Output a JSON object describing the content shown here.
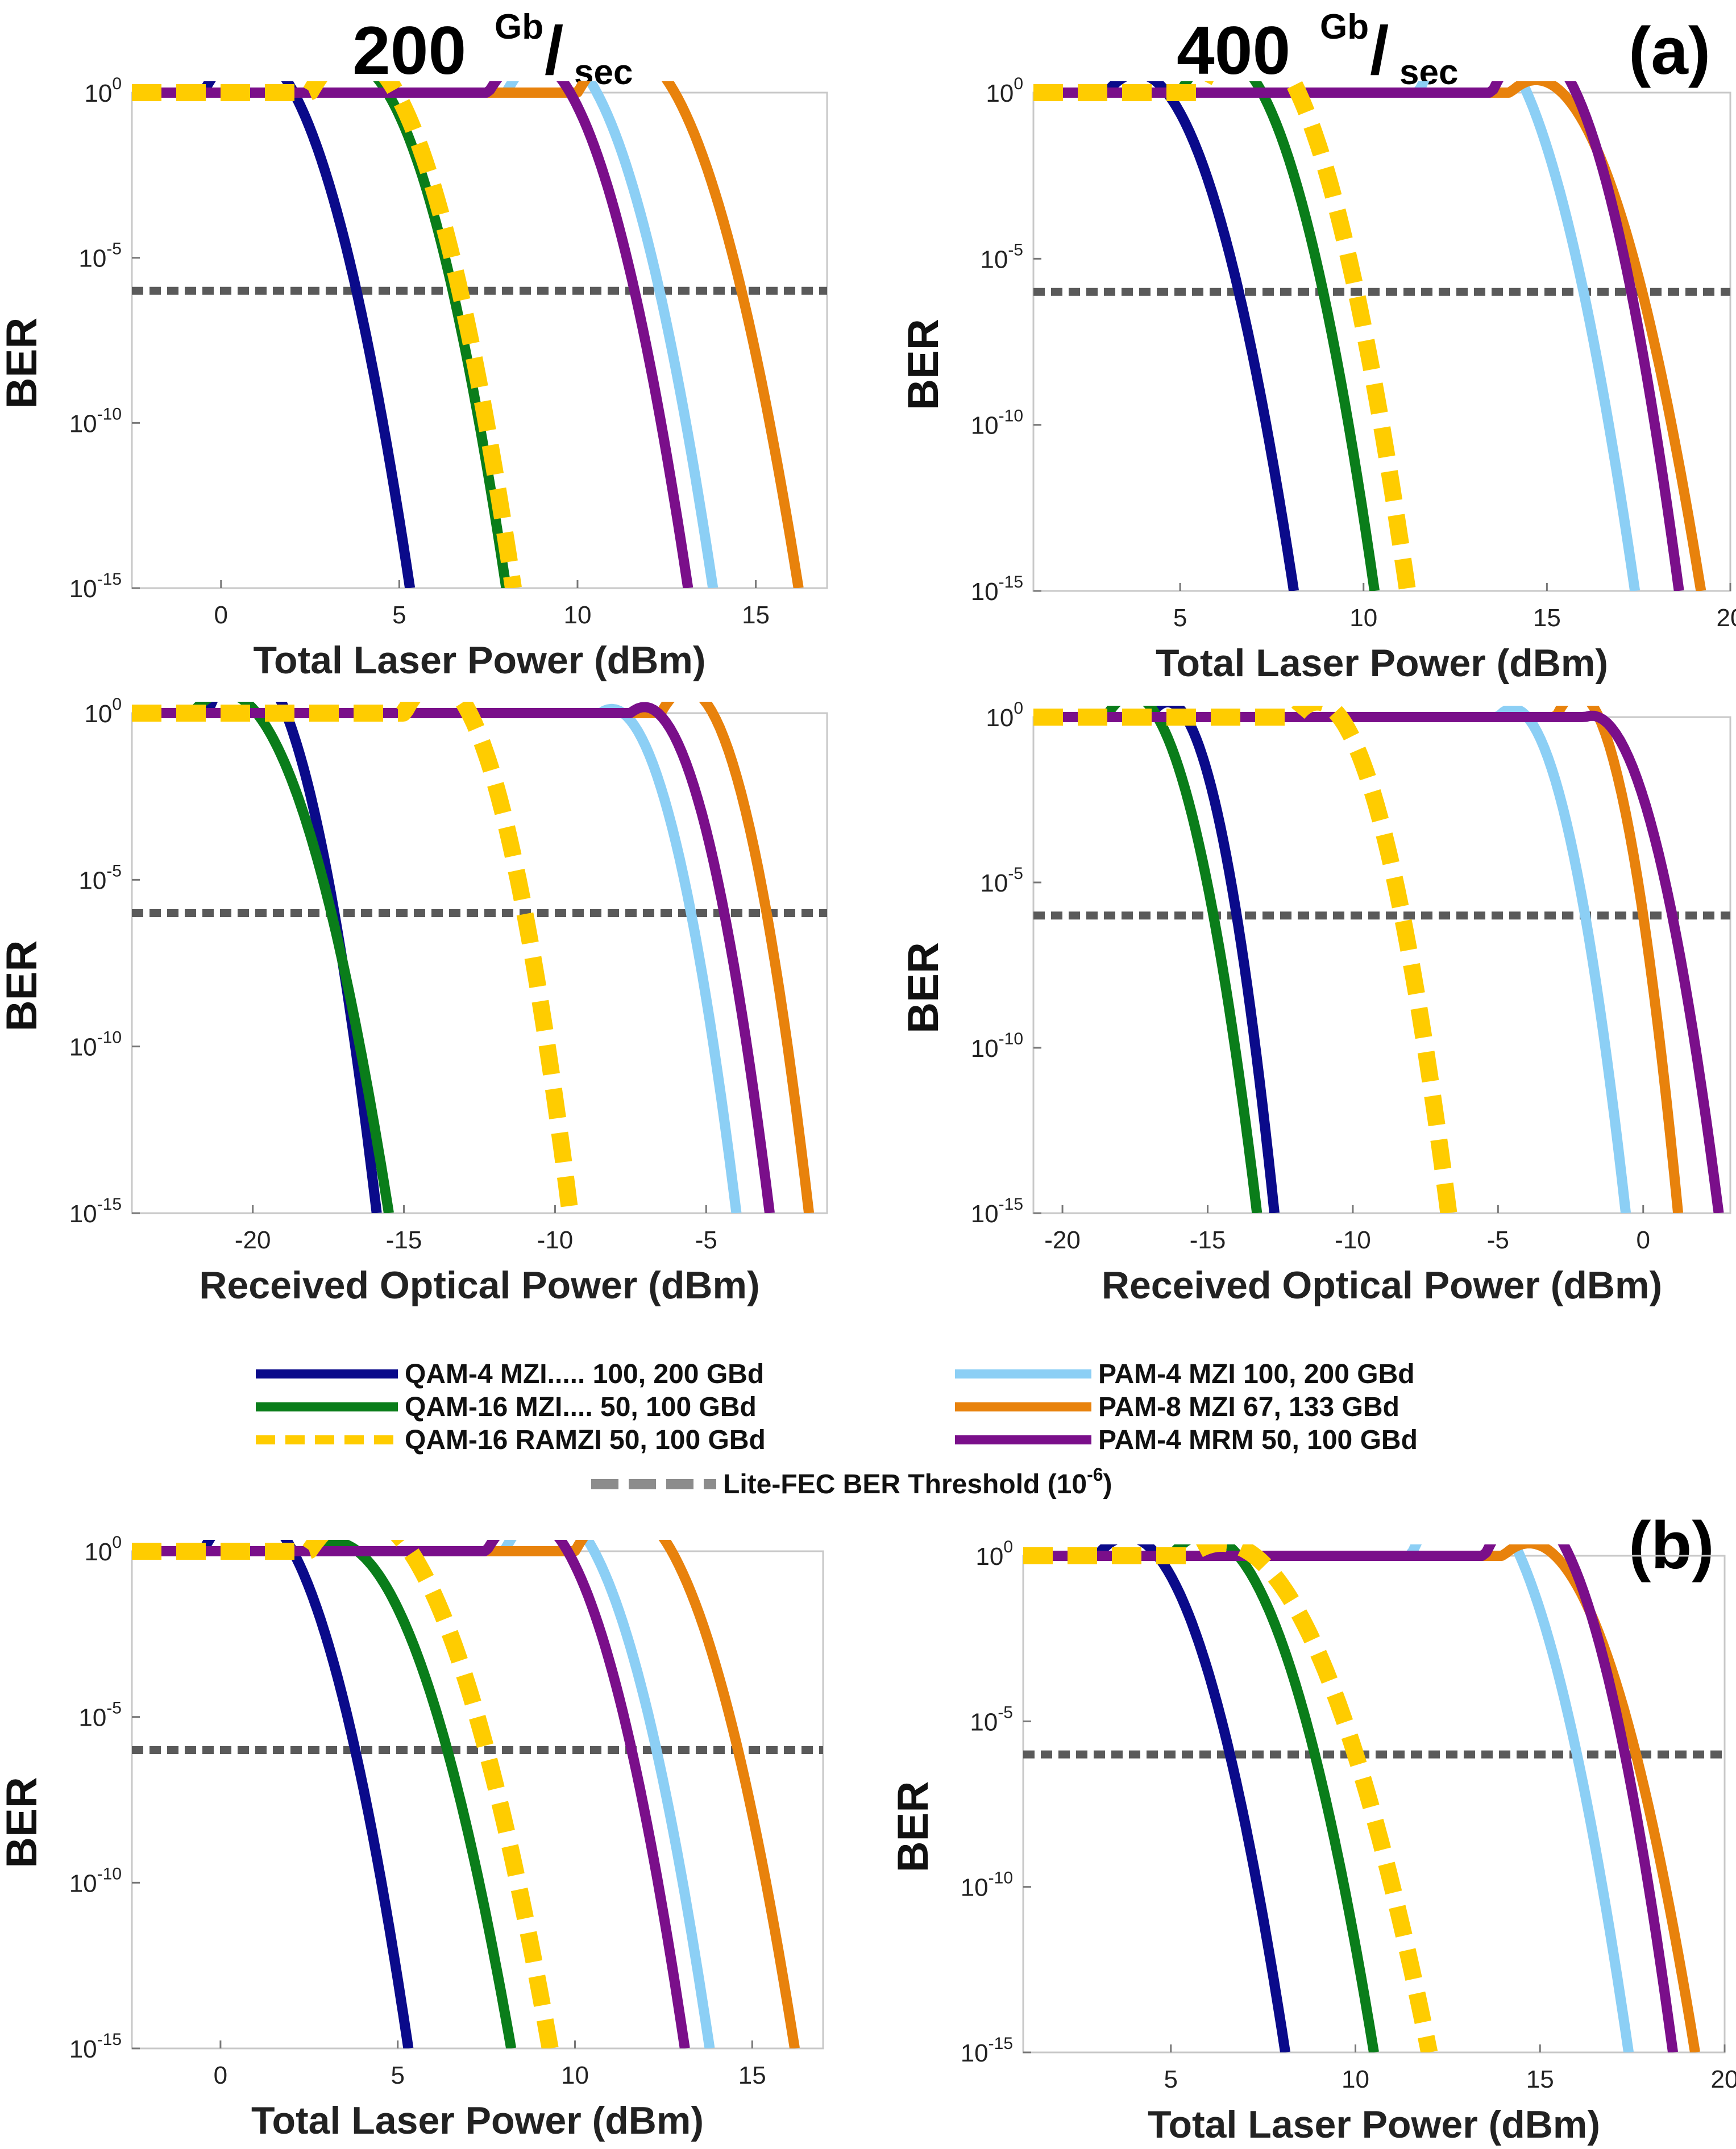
{
  "figure": {
    "col_titles": [
      {
        "number": "200 ",
        "sup": "Gb",
        "slash": "/",
        "sub": "sec"
      },
      {
        "number": "400 ",
        "sup": "Gb",
        "slash": "/",
        "sub": "sec"
      }
    ],
    "panel_tags": [
      "(a)",
      "(b)"
    ]
  },
  "legend": {
    "items": [
      {
        "label": "QAM-4 MZI..... 100, 200 GBd",
        "color": "#0a0a8a",
        "style": "solid"
      },
      {
        "label": "QAM-16 MZI.... 50, 100 GBd",
        "color": "#0a7d1a",
        "style": "solid"
      },
      {
        "label": "QAM-16 RAMZI 50, 100 GBd",
        "color": "#ffcc00",
        "style": "dashed"
      },
      {
        "label": "PAM-4 MZI 100, 200 GBd",
        "color": "#8ccff5",
        "style": "solid"
      },
      {
        "label": "PAM-8 MZI   67, 133 GBd",
        "color": "#e8820c",
        "style": "solid"
      },
      {
        "label": "PAM-4 MRM 50, 100 GBd",
        "color": "#7a0f8a",
        "style": "solid"
      }
    ],
    "threshold": {
      "label_main": "Lite-FEC BER Threshold (10",
      "label_exp": "-6",
      "label_end": ")",
      "color": "#8c8c8c"
    }
  },
  "chart_data": [
    {
      "type": "line",
      "id": "a1",
      "xlabel": "Total Laser Power (dBm)",
      "ylabel": "BER",
      "yscale": "log",
      "xlim": [
        -2.5,
        17
      ],
      "xticks": [
        0,
        5,
        10,
        15
      ],
      "ylim_exp": [
        -15,
        0
      ],
      "threshold_exp": -6,
      "series": [
        {
          "name": "QAM-4 MZI",
          "onset": -0.5,
          "cross": 3.8,
          "end": 5.3
        },
        {
          "name": "QAM-16 MZI",
          "onset": 2.5,
          "cross": 6.5,
          "end": 8.0
        },
        {
          "name": "QAM-16 RAMZI",
          "onset": 2.5,
          "cross": 6.7,
          "end": 8.2
        },
        {
          "name": "PAM-4 MZI",
          "onset": 8.0,
          "cross": 12.3,
          "end": 13.8
        },
        {
          "name": "PAM-8 MZI",
          "onset": 10.0,
          "cross": 14.6,
          "end": 16.2
        },
        {
          "name": "PAM-4 MRM",
          "onset": 7.5,
          "cross": 11.6,
          "end": 13.1
        }
      ]
    },
    {
      "type": "line",
      "id": "a2",
      "xlabel": "Total Laser Power (dBm)",
      "ylabel": "BER",
      "yscale": "log",
      "xlim": [
        1,
        20
      ],
      "xticks": [
        5,
        10,
        15,
        20
      ],
      "ylim_exp": [
        -15,
        0
      ],
      "threshold_exp": -6,
      "series": [
        {
          "name": "QAM-4 MZI",
          "onset": 3.0,
          "cross": 6.6,
          "end": 8.1
        },
        {
          "name": "QAM-16 MZI",
          "onset": 5.0,
          "cross": 8.9,
          "end": 10.3
        },
        {
          "name": "QAM-16 RAMZI",
          "onset": 5.5,
          "cross": 9.8,
          "end": 11.2
        },
        {
          "name": "PAM-4 MZI",
          "onset": 11.5,
          "cross": 16.0,
          "end": 17.4
        },
        {
          "name": "PAM-8 MZI",
          "onset": 14.0,
          "cross": 17.6,
          "end": 19.2
        },
        {
          "name": "PAM-4 MRM",
          "onset": 13.5,
          "cross": 17.3,
          "end": 18.6
        }
      ]
    },
    {
      "type": "line",
      "id": "a3",
      "xlabel": "Received Optical Power (dBm)",
      "ylabel": "BER",
      "yscale": "log",
      "xlim": [
        -24,
        -1
      ],
      "xticks": [
        -20,
        -15,
        -10,
        -5
      ],
      "ylim_exp": [
        -15,
        0
      ],
      "threshold_exp": -6,
      "series": [
        {
          "name": "QAM-4 MZI",
          "onset": -21.5,
          "cross": -17.3,
          "end": -15.9
        },
        {
          "name": "QAM-16 MZI",
          "onset": -22.0,
          "cross": -17.4,
          "end": -15.5
        },
        {
          "name": "QAM-16 RAMZI",
          "onset": -15.0,
          "cross": -11.0,
          "end": -9.5
        },
        {
          "name": "PAM-4 MZI",
          "onset": -8.5,
          "cross": -5.5,
          "end": -4.0
        },
        {
          "name": "PAM-8 MZI",
          "onset": -6.5,
          "cross": -3.0,
          "end": -1.6
        },
        {
          "name": "PAM-4 MRM",
          "onset": -7.5,
          "cross": -4.4,
          "end": -2.9
        }
      ]
    },
    {
      "type": "line",
      "id": "a4",
      "xlabel": "Received Optical Power (dBm)",
      "ylabel": "BER",
      "yscale": "log",
      "xlim": [
        -21,
        3
      ],
      "xticks": [
        -20,
        -15,
        -10,
        -5,
        0
      ],
      "ylim_exp": [
        -15,
        0
      ],
      "threshold_exp": -6,
      "series": [
        {
          "name": "QAM-4 MZI",
          "onset": -17.0,
          "cross": -14.0,
          "end": -12.7
        },
        {
          "name": "QAM-16 MZI",
          "onset": -18.5,
          "cross": -14.8,
          "end": -13.3
        },
        {
          "name": "QAM-16 RAMZI",
          "onset": -12.0,
          "cross": -8.3,
          "end": -6.7
        },
        {
          "name": "PAM-4 MZI",
          "onset": -5.0,
          "cross": -2.0,
          "end": -0.6
        },
        {
          "name": "PAM-8 MZI",
          "onset": -3.0,
          "cross": 0.0,
          "end": 1.2
        },
        {
          "name": "PAM-4 MRM",
          "onset": -2.0,
          "cross": 1.0,
          "end": 2.6
        }
      ]
    },
    {
      "type": "line",
      "id": "b1",
      "xlabel": "Total Laser Power (dBm)",
      "ylabel": "BER",
      "yscale": "log",
      "xlim": [
        -2.5,
        17
      ],
      "xticks": [
        0,
        5,
        10,
        15
      ],
      "ylim_exp": [
        -15,
        0
      ],
      "threshold_exp": -6,
      "series": [
        {
          "name": "QAM-4 MZI",
          "onset": -0.5,
          "cross": 3.8,
          "end": 5.3
        },
        {
          "name": "QAM-16 MZI",
          "onset": 2.5,
          "cross": 6.4,
          "end": 8.2
        },
        {
          "name": "QAM-16 RAMZI",
          "onset": 2.5,
          "cross": 7.5,
          "end": 9.3
        },
        {
          "name": "PAM-4 MZI",
          "onset": 8.0,
          "cross": 12.3,
          "end": 13.8
        },
        {
          "name": "PAM-8 MZI",
          "onset": 10.0,
          "cross": 14.6,
          "end": 16.2
        },
        {
          "name": "PAM-4 MRM",
          "onset": 7.5,
          "cross": 11.6,
          "end": 13.1
        }
      ]
    },
    {
      "type": "line",
      "id": "b2",
      "xlabel": "Total Laser Power (dBm)",
      "ylabel": "BER",
      "yscale": "log",
      "xlim": [
        1,
        20
      ],
      "xticks": [
        5,
        10,
        15,
        20
      ],
      "ylim_exp": [
        -15,
        0
      ],
      "threshold_exp": -6,
      "series": [
        {
          "name": "QAM-4 MZI",
          "onset": 3.0,
          "cross": 6.6,
          "end": 8.1
        },
        {
          "name": "QAM-16 MZI",
          "onset": 5.0,
          "cross": 8.9,
          "end": 10.5
        },
        {
          "name": "QAM-16 RAMZI",
          "onset": 5.5,
          "cross": 10.0,
          "end": 12.0
        },
        {
          "name": "PAM-4 MZI",
          "onset": 11.5,
          "cross": 16.0,
          "end": 17.4
        },
        {
          "name": "PAM-8 MZI",
          "onset": 14.0,
          "cross": 17.6,
          "end": 19.2
        },
        {
          "name": "PAM-4 MRM",
          "onset": 13.5,
          "cross": 17.3,
          "end": 18.6
        }
      ]
    }
  ]
}
